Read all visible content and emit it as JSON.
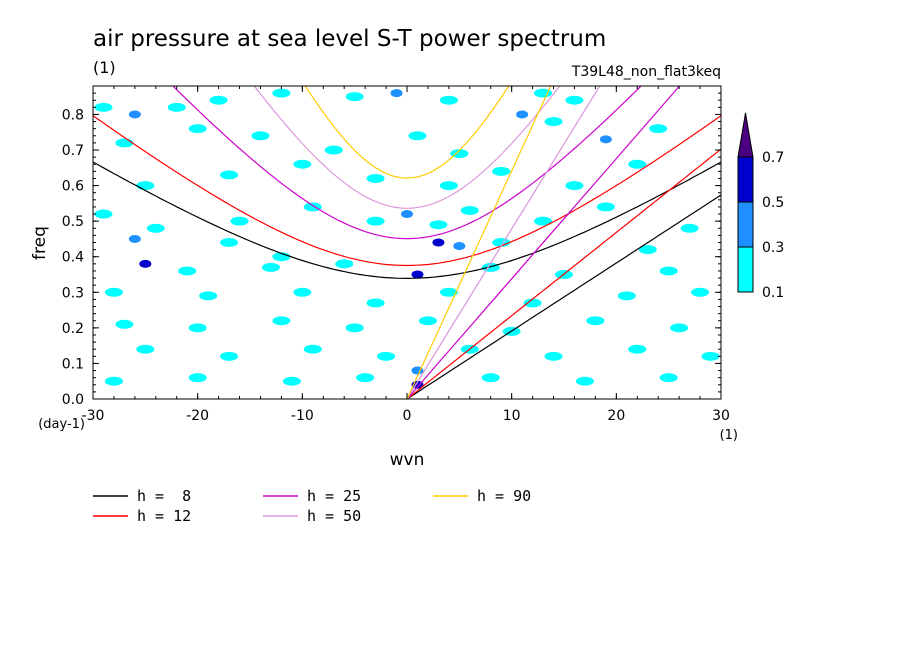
{
  "chart_data": {
    "type": "heatmap",
    "title": "air pressure at sea level S-T power spectrum",
    "subtitle": "(1)",
    "run_label": "T39L48_non_flat3keq",
    "xlabel": "wvn",
    "ylabel": "freq",
    "x_unit": "(1)",
    "y_unit": "(day-1)",
    "xlim": [
      -30,
      30
    ],
    "ylim": [
      0,
      0.88
    ],
    "x_ticks": [
      -30,
      -20,
      -10,
      0,
      10,
      20,
      30
    ],
    "x_tick_labels": [
      "-30",
      "-20",
      "-10",
      "0",
      "10",
      "20",
      "30"
    ],
    "y_ticks": [
      0,
      0.1,
      0.2,
      0.3,
      0.4,
      0.5,
      0.6,
      0.7,
      0.8
    ],
    "y_tick_labels": [
      "0.0",
      "0.1",
      "0.2",
      "0.3",
      "0.4",
      "0.5",
      "0.6",
      "0.7",
      "0.8"
    ],
    "colorbar": {
      "levels": [
        0.1,
        0.3,
        0.5,
        0.7
      ],
      "level_labels": [
        "0.1",
        "0.3",
        "0.5",
        "0.7"
      ],
      "colors": [
        "#00ffff",
        "#1e90ff",
        "#0000cd",
        "#4b0082"
      ]
    },
    "contour_patches": [
      {
        "x": -29,
        "y": 0.82,
        "level": 0.1
      },
      {
        "x": -26,
        "y": 0.8,
        "level": 0.3
      },
      {
        "x": -22,
        "y": 0.82,
        "level": 0.1
      },
      {
        "x": -18,
        "y": 0.84,
        "level": 0.1
      },
      {
        "x": -12,
        "y": 0.86,
        "level": 0.1
      },
      {
        "x": -5,
        "y": 0.85,
        "level": 0.1
      },
      {
        "x": -1,
        "y": 0.86,
        "level": 0.3
      },
      {
        "x": 4,
        "y": 0.84,
        "level": 0.1
      },
      {
        "x": 13,
        "y": 0.86,
        "level": 0.1
      },
      {
        "x": 16,
        "y": 0.84,
        "level": 0.1
      },
      {
        "x": -27,
        "y": 0.72,
        "level": 0.1
      },
      {
        "x": -20,
        "y": 0.76,
        "level": 0.1
      },
      {
        "x": -14,
        "y": 0.74,
        "level": 0.1
      },
      {
        "x": -7,
        "y": 0.7,
        "level": 0.1
      },
      {
        "x": 1,
        "y": 0.74,
        "level": 0.1
      },
      {
        "x": 5,
        "y": 0.69,
        "level": 0.1
      },
      {
        "x": 11,
        "y": 0.8,
        "level": 0.3
      },
      {
        "x": 14,
        "y": 0.78,
        "level": 0.1
      },
      {
        "x": 19,
        "y": 0.73,
        "level": 0.3
      },
      {
        "x": 24,
        "y": 0.76,
        "level": 0.1
      },
      {
        "x": -25,
        "y": 0.6,
        "level": 0.1
      },
      {
        "x": -17,
        "y": 0.63,
        "level": 0.1
      },
      {
        "x": -10,
        "y": 0.66,
        "level": 0.1
      },
      {
        "x": -3,
        "y": 0.62,
        "level": 0.1
      },
      {
        "x": 4,
        "y": 0.6,
        "level": 0.1
      },
      {
        "x": 9,
        "y": 0.64,
        "level": 0.1
      },
      {
        "x": 16,
        "y": 0.6,
        "level": 0.1
      },
      {
        "x": 22,
        "y": 0.66,
        "level": 0.1
      },
      {
        "x": -29,
        "y": 0.52,
        "level": 0.1
      },
      {
        "x": -24,
        "y": 0.48,
        "level": 0.1
      },
      {
        "x": -16,
        "y": 0.5,
        "level": 0.1
      },
      {
        "x": -9,
        "y": 0.54,
        "level": 0.1
      },
      {
        "x": -3,
        "y": 0.5,
        "level": 0.1
      },
      {
        "x": 0,
        "y": 0.52,
        "level": 0.3
      },
      {
        "x": 3,
        "y": 0.49,
        "level": 0.1
      },
      {
        "x": 6,
        "y": 0.53,
        "level": 0.1
      },
      {
        "x": 13,
        "y": 0.5,
        "level": 0.1
      },
      {
        "x": 19,
        "y": 0.54,
        "level": 0.1
      },
      {
        "x": 27,
        "y": 0.48,
        "level": 0.1
      },
      {
        "x": -26,
        "y": 0.45,
        "level": 0.3
      },
      {
        "x": -17,
        "y": 0.44,
        "level": 0.1
      },
      {
        "x": -12,
        "y": 0.4,
        "level": 0.1
      },
      {
        "x": 3,
        "y": 0.44,
        "level": 0.5
      },
      {
        "x": 5,
        "y": 0.43,
        "level": 0.3
      },
      {
        "x": 9,
        "y": 0.44,
        "level": 0.1
      },
      {
        "x": 23,
        "y": 0.42,
        "level": 0.1
      },
      {
        "x": -25,
        "y": 0.38,
        "level": 0.5
      },
      {
        "x": -21,
        "y": 0.36,
        "level": 0.1
      },
      {
        "x": -13,
        "y": 0.37,
        "level": 0.1
      },
      {
        "x": -6,
        "y": 0.38,
        "level": 0.1
      },
      {
        "x": 1,
        "y": 0.35,
        "level": 0.5
      },
      {
        "x": 8,
        "y": 0.37,
        "level": 0.1
      },
      {
        "x": 15,
        "y": 0.35,
        "level": 0.1
      },
      {
        "x": 25,
        "y": 0.36,
        "level": 0.1
      },
      {
        "x": -28,
        "y": 0.3,
        "level": 0.1
      },
      {
        "x": -19,
        "y": 0.29,
        "level": 0.1
      },
      {
        "x": -10,
        "y": 0.3,
        "level": 0.1
      },
      {
        "x": -3,
        "y": 0.27,
        "level": 0.1
      },
      {
        "x": 4,
        "y": 0.3,
        "level": 0.1
      },
      {
        "x": 12,
        "y": 0.27,
        "level": 0.1
      },
      {
        "x": 21,
        "y": 0.29,
        "level": 0.1
      },
      {
        "x": 28,
        "y": 0.3,
        "level": 0.1
      },
      {
        "x": -27,
        "y": 0.21,
        "level": 0.1
      },
      {
        "x": -20,
        "y": 0.2,
        "level": 0.1
      },
      {
        "x": -12,
        "y": 0.22,
        "level": 0.1
      },
      {
        "x": -5,
        "y": 0.2,
        "level": 0.1
      },
      {
        "x": 2,
        "y": 0.22,
        "level": 0.1
      },
      {
        "x": 10,
        "y": 0.19,
        "level": 0.1
      },
      {
        "x": 18,
        "y": 0.22,
        "level": 0.1
      },
      {
        "x": 26,
        "y": 0.2,
        "level": 0.1
      },
      {
        "x": -25,
        "y": 0.14,
        "level": 0.1
      },
      {
        "x": -17,
        "y": 0.12,
        "level": 0.1
      },
      {
        "x": -9,
        "y": 0.14,
        "level": 0.1
      },
      {
        "x": -2,
        "y": 0.12,
        "level": 0.1
      },
      {
        "x": 6,
        "y": 0.14,
        "level": 0.1
      },
      {
        "x": 14,
        "y": 0.12,
        "level": 0.1
      },
      {
        "x": 22,
        "y": 0.14,
        "level": 0.1
      },
      {
        "x": 29,
        "y": 0.12,
        "level": 0.1
      },
      {
        "x": -28,
        "y": 0.05,
        "level": 0.1
      },
      {
        "x": -20,
        "y": 0.06,
        "level": 0.1
      },
      {
        "x": -11,
        "y": 0.05,
        "level": 0.1
      },
      {
        "x": -4,
        "y": 0.06,
        "level": 0.1
      },
      {
        "x": 1,
        "y": 0.08,
        "level": 0.3
      },
      {
        "x": 1,
        "y": 0.04,
        "level": 0.5
      },
      {
        "x": 8,
        "y": 0.06,
        "level": 0.1
      },
      {
        "x": 17,
        "y": 0.05,
        "level": 0.1
      },
      {
        "x": 25,
        "y": 0.06,
        "level": 0.1
      }
    ],
    "series": [
      {
        "name": "h =  8",
        "color": "#000000",
        "h": 8
      },
      {
        "name": "h = 12",
        "color": "#ff0000",
        "h": 12
      },
      {
        "name": "h = 25",
        "color": "#cc00cc",
        "h": 25
      },
      {
        "name": "h = 50",
        "color": "#dd99dd",
        "h": 50
      },
      {
        "name": "h = 90",
        "color": "#ffcc00",
        "h": 90
      }
    ]
  }
}
